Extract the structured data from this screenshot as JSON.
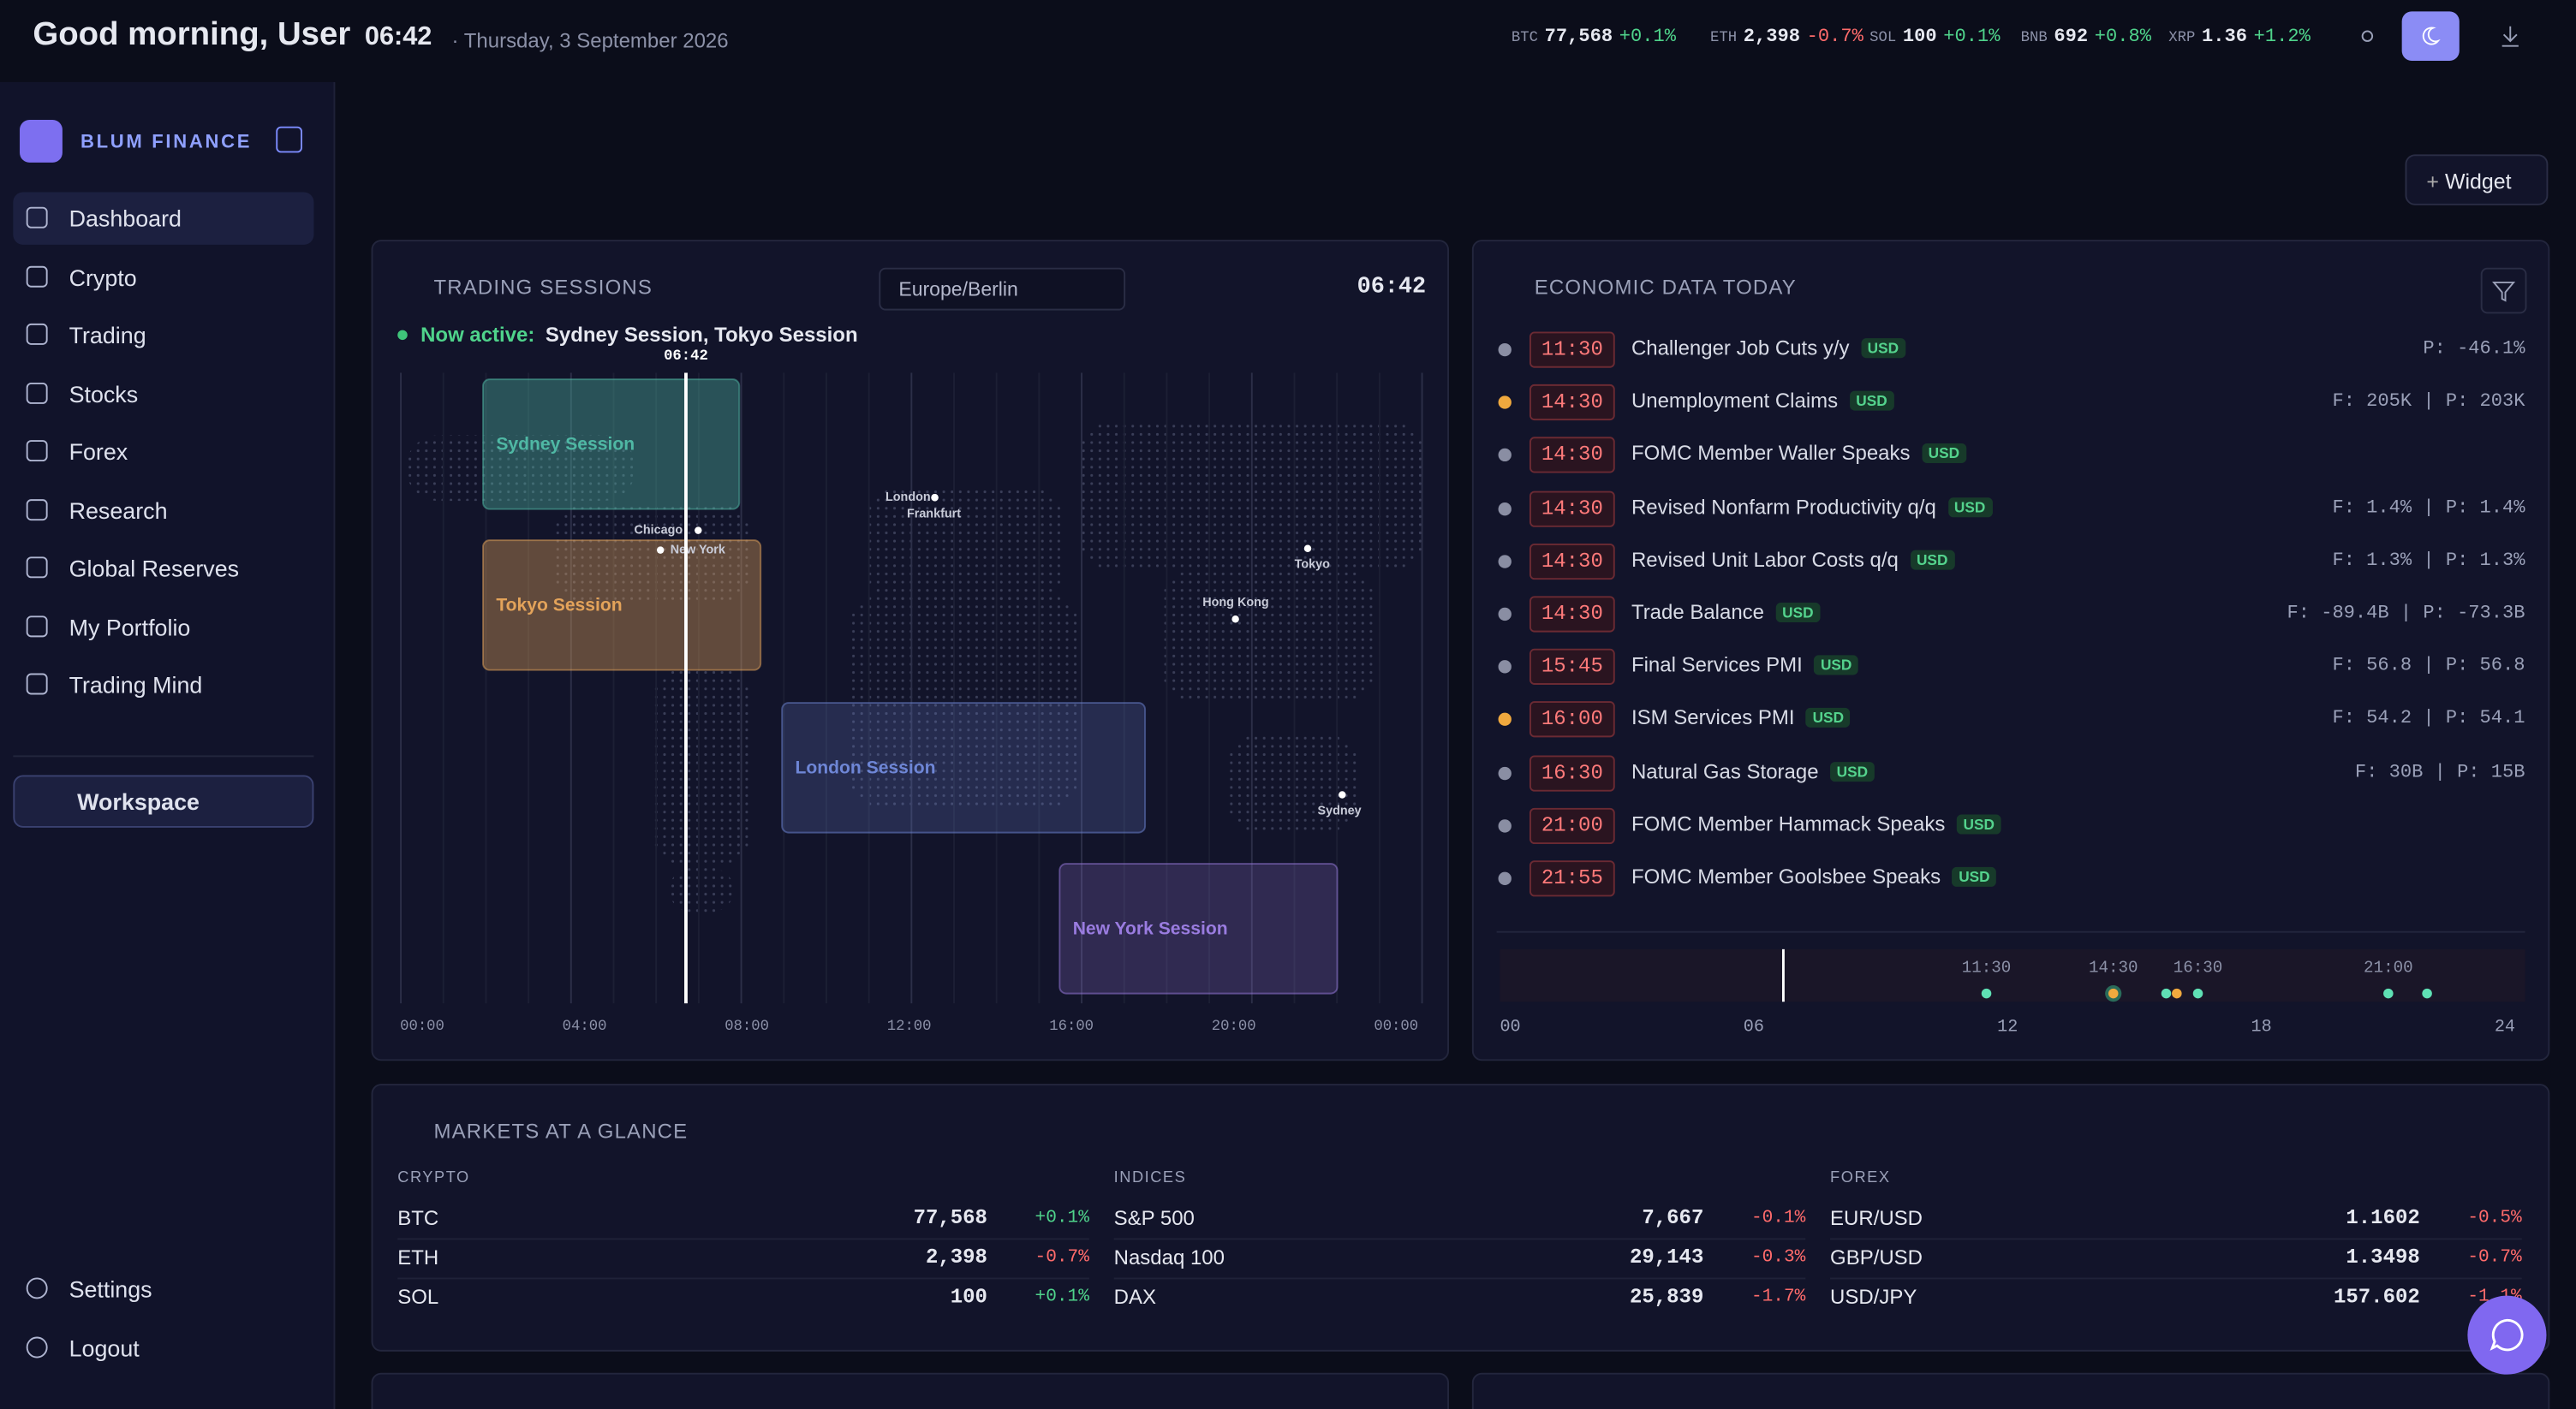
{
  "header": {
    "greeting": "Good morning, User",
    "time": "06:42",
    "date": "· Thursday, 3 September 2026"
  },
  "ticker": [
    {
      "symbol": "BTC",
      "price": "77,568",
      "change": "+0.1%"
    },
    {
      "symbol": "ETH",
      "price": "2,398",
      "change": "-0.7%"
    },
    {
      "symbol": "SOL",
      "price": "100",
      "change": "+0.1%"
    },
    {
      "symbol": "BNB",
      "price": "692",
      "change": "+0.8%"
    },
    {
      "symbol": "XRP",
      "price": "1.36",
      "change": "+1.2%"
    }
  ],
  "toolbar": {
    "widget": "Widget"
  },
  "sidebar": {
    "brand": "BLUM FINANCE",
    "nav": [
      "Dashboard",
      "Crypto",
      "Trading",
      "Stocks",
      "Forex",
      "Research",
      "Global Reserves",
      "My Portfolio",
      "Trading Mind"
    ],
    "workspace": "Workspace",
    "footer": [
      "Settings",
      "Logout"
    ]
  },
  "sessions": {
    "title": "TRADING SESSIONS",
    "timezone": "Europe/Berlin",
    "clock": "06:42",
    "active_label": "Now active:",
    "active": "Sydney Session, Tokyo Session",
    "now_marker": "06:42",
    "boxes": [
      {
        "name": "Sydney Session",
        "color": "#4fb8a4"
      },
      {
        "name": "Tokyo Session",
        "color": "#e3a35a"
      },
      {
        "name": "London Session",
        "color": "#6e86d6"
      },
      {
        "name": "New York Session",
        "color": "#9a7ce0"
      }
    ],
    "cities": [
      "London",
      "Frankfurt",
      "Chicago",
      "New York",
      "Tokyo",
      "Hong Kong",
      "Sydney"
    ],
    "axis": [
      "00:00",
      "04:00",
      "08:00",
      "12:00",
      "16:00",
      "20:00",
      "00:00"
    ]
  },
  "economic": {
    "title": "ECONOMIC DATA TODAY",
    "events": [
      {
        "time": "11:30",
        "name": "Challenger Job Cuts y/y",
        "currency": "USD",
        "figures": "P: -46.1%",
        "color": "#8a8ea3"
      },
      {
        "time": "14:30",
        "name": "Unemployment Claims",
        "currency": "USD",
        "figures": "F: 205K | P: 203K",
        "color": "#f0a93e"
      },
      {
        "time": "14:30",
        "name": "FOMC Member Waller Speaks",
        "currency": "USD",
        "figures": null,
        "color": "#8a8ea3"
      },
      {
        "time": "14:30",
        "name": "Revised Nonfarm Productivity q/q",
        "currency": "USD",
        "figures": "F: 1.4% | P: 1.4%",
        "color": "#8a8ea3"
      },
      {
        "time": "14:30",
        "name": "Revised Unit Labor Costs q/q",
        "currency": "USD",
        "figures": "F: 1.3% | P: 1.3%",
        "color": "#8a8ea3"
      },
      {
        "time": "14:30",
        "name": "Trade Balance",
        "currency": "USD",
        "figures": "F: -89.4B | P: -73.3B",
        "color": "#8a8ea3"
      },
      {
        "time": "15:45",
        "name": "Final Services PMI",
        "currency": "USD",
        "figures": "F: 56.8 | P: 56.8",
        "color": "#8a8ea3"
      },
      {
        "time": "16:00",
        "name": "ISM Services PMI",
        "currency": "USD",
        "figures": "F: 54.2 | P: 54.1",
        "color": "#f0a93e"
      },
      {
        "time": "16:30",
        "name": "Natural Gas Storage",
        "currency": "USD",
        "figures": "F: 30B | P: 15B",
        "color": "#8a8ea3"
      },
      {
        "time": "21:00",
        "name": "FOMC Member Hammack Speaks",
        "currency": "USD",
        "figures": null,
        "color": "#8a8ea3"
      },
      {
        "time": "21:55",
        "name": "FOMC Member Goolsbee Speaks",
        "currency": "USD",
        "figures": null,
        "color": "#8a8ea3"
      }
    ],
    "timeline_labels": [
      "11:30",
      "14:30",
      "16:30",
      "21:00"
    ],
    "axis": [
      "00",
      "06",
      "12",
      "18",
      "24"
    ]
  },
  "markets": {
    "title": "MARKETS AT A GLANCE",
    "groups": [
      {
        "name": "CRYPTO",
        "rows": [
          [
            "BTC",
            "77,568",
            "+0.1%"
          ],
          [
            "ETH",
            "2,398",
            "-0.7%"
          ],
          [
            "SOL",
            "100",
            "+0.1%"
          ]
        ]
      },
      {
        "name": "INDICES",
        "rows": [
          [
            "S&P 500",
            "7,667",
            "-0.1%"
          ],
          [
            "Nasdaq 100",
            "29,143",
            "-0.3%"
          ],
          [
            "DAX",
            "25,839",
            "-1.7%"
          ]
        ]
      },
      {
        "name": "FOREX",
        "rows": [
          [
            "EUR/USD",
            "1.1602",
            "-0.5%"
          ],
          [
            "GBP/USD",
            "1.3498",
            "-0.7%"
          ],
          [
            "USD/JPY",
            "157.602",
            "-1.1%"
          ]
        ]
      }
    ]
  }
}
